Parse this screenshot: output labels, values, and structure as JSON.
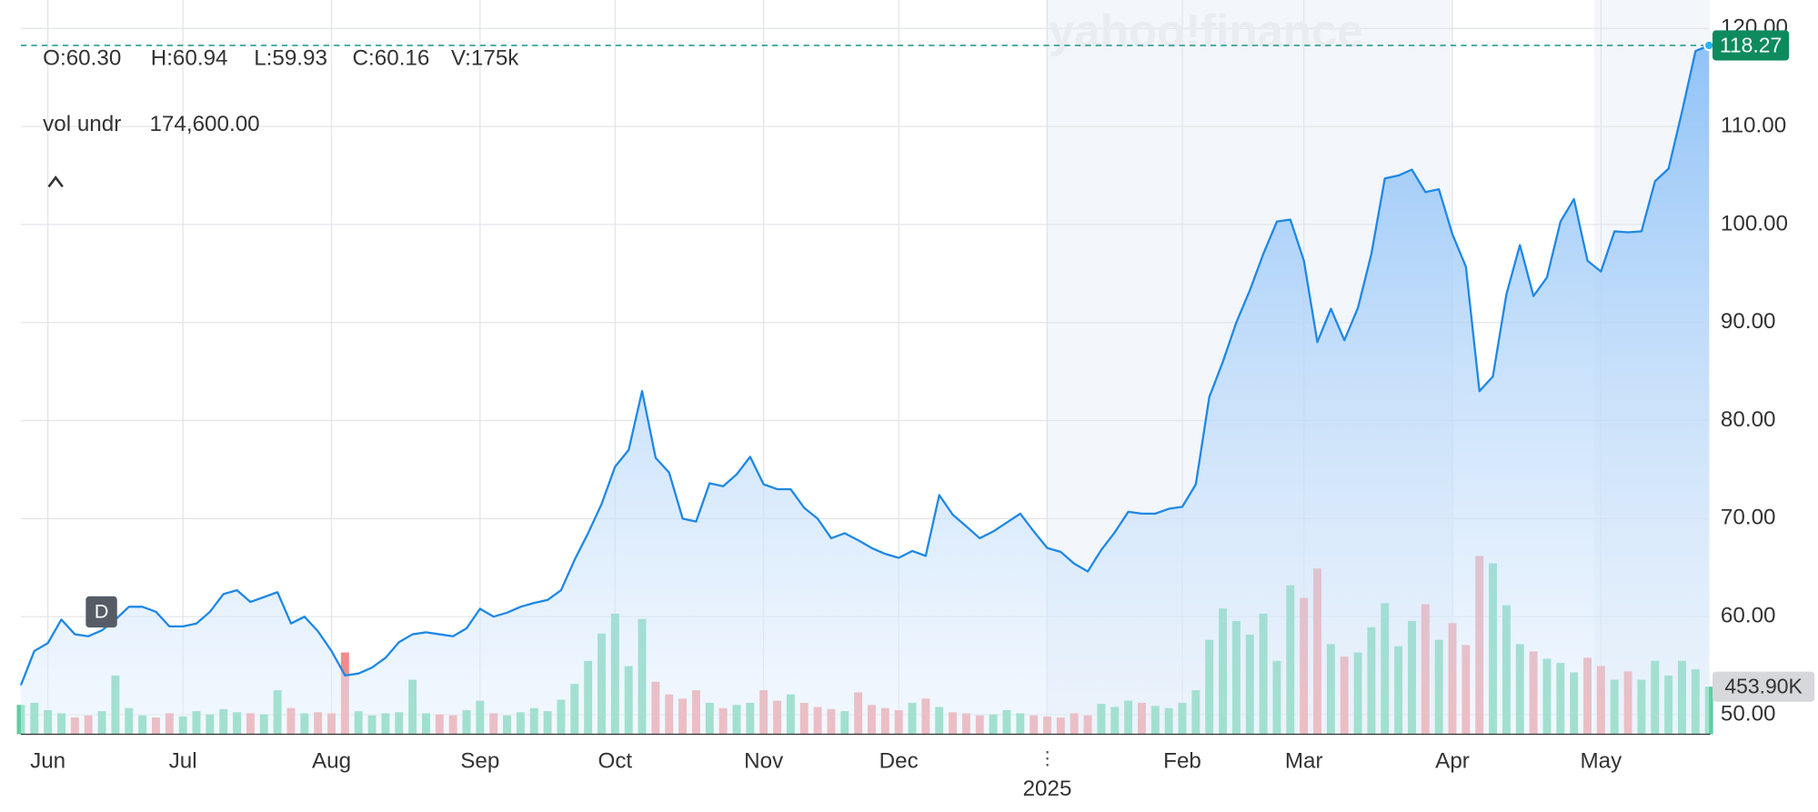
{
  "chart_data": {
    "type": "area",
    "watermark": "yahoo!finance",
    "ohlcv": [
      "O:60.30",
      "H:60.94",
      "L:59.93",
      "C:60.16",
      "V:175k"
    ],
    "volume_indicator": {
      "name": "vol undr",
      "value": "174,600.00"
    },
    "interval": "D",
    "color": "#1e88e5",
    "categories": [
      null,
      null,
      "Jun",
      null,
      null,
      null,
      null,
      null,
      null,
      null,
      null,
      null,
      "Jul",
      null,
      null,
      null,
      null,
      null,
      null,
      null,
      null,
      null,
      null,
      "Aug",
      null,
      null,
      null,
      null,
      null,
      null,
      null,
      null,
      null,
      null,
      "Sep",
      null,
      null,
      null,
      null,
      null,
      null,
      null,
      null,
      null,
      "Oct",
      null,
      null,
      null,
      null,
      null,
      null,
      null,
      null,
      null,
      null,
      "Nov",
      null,
      null,
      null,
      null,
      null,
      null,
      null,
      null,
      null,
      "Dec",
      null,
      null,
      null,
      null,
      null,
      null,
      null,
      null,
      null,
      null,
      "2025",
      null,
      null,
      null,
      null,
      null,
      null,
      null,
      null,
      null,
      "Feb",
      null,
      null,
      null,
      null,
      null,
      null,
      null,
      null,
      "Mar",
      null,
      null,
      null,
      null,
      null,
      null,
      null,
      null,
      null,
      null,
      "Apr",
      null,
      null,
      null,
      null,
      null,
      null,
      null,
      null,
      null,
      null,
      "May",
      null,
      null,
      null,
      null,
      null,
      null,
      null,
      null
    ],
    "values": [
      53,
      56.5,
      57.3,
      59.7,
      58.2,
      58,
      58.6,
      59.7,
      61,
      61,
      60.5,
      59,
      59,
      59.3,
      60.5,
      62.3,
      62.7,
      61.5,
      62,
      62.5,
      59.3,
      60,
      58.5,
      56.5,
      54,
      54.2,
      54.8,
      55.8,
      57.4,
      58.2,
      58.4,
      58.2,
      58,
      58.8,
      60.8,
      60,
      60.4,
      61,
      61.4,
      61.7,
      62.7,
      65.8,
      68.5,
      71.5,
      75.3,
      77,
      83,
      76.2,
      74.7,
      70,
      69.7,
      73.6,
      73.3,
      74.5,
      76.3,
      73.5,
      73,
      73,
      71.1,
      70,
      68,
      68.5,
      67.8,
      67,
      66.4,
      66,
      66.7,
      66.2,
      72.4,
      70.4,
      69.2,
      68,
      68.7,
      69.6,
      70.5,
      68.7,
      67,
      66.6,
      65.4,
      64.6,
      66.8,
      68.6,
      70.7,
      70.5,
      70.5,
      71,
      71.2,
      73.5,
      82.4,
      86,
      90,
      93.3,
      97,
      100.3,
      100.5,
      96.3,
      88,
      91.4,
      88.2,
      91.5,
      97,
      104.7,
      105,
      105.6,
      103.3,
      103.6,
      99,
      95.7,
      83,
      84.5,
      92.9,
      97.9,
      92.7,
      94.6,
      100.3,
      102.6,
      96.3,
      95.2,
      99.3,
      99.2,
      99.3,
      104.4,
      105.7,
      111.5,
      117.7,
      118.27
    ],
    "ylim": [
      48,
      122.9
    ],
    "yticks": [
      {
        "value": 50,
        "label": "50.00"
      },
      {
        "value": 60,
        "label": "60.00"
      },
      {
        "value": 70,
        "label": "70.00"
      },
      {
        "value": 80,
        "label": "80.00"
      },
      {
        "value": 90,
        "label": "90.00"
      },
      {
        "value": 100,
        "label": "100.00"
      },
      {
        "value": 110,
        "label": "110.00"
      },
      {
        "value": 120,
        "label": "120.00"
      }
    ],
    "grid": true,
    "last_price_color": "#0e8a5f",
    "volume": {
      "up_color": "#5ccf9e",
      "down_color": "#f28b8b",
      "lim": [
        0,
        7000
      ],
      "values": [
        280,
        300,
        230,
        200,
        160,
        180,
        220,
        560,
        250,
        180,
        160,
        200,
        170,
        220,
        190,
        240,
        210,
        200,
        190,
        420,
        250,
        200,
        210,
        200,
        780,
        220,
        180,
        200,
        210,
        520,
        200,
        190,
        180,
        230,
        320,
        200,
        180,
        210,
        250,
        220,
        330,
        480,
        700,
        960,
        1150,
        650,
        1100,
        500,
        380,
        340,
        420,
        300,
        250,
        280,
        300,
        420,
        320,
        380,
        300,
        260,
        240,
        220,
        400,
        280,
        250,
        230,
        300,
        340,
        260,
        210,
        200,
        180,
        190,
        230,
        200,
        180,
        170,
        160,
        200,
        180,
        290,
        260,
        320,
        300,
        270,
        250,
        300,
        420,
        900,
        1200,
        1080,
        950,
        1150,
        700,
        1420,
        1300,
        1580,
        860,
        740,
        780,
        1020,
        1250,
        840,
        1080,
        1240,
        900,
        1060,
        850,
        1700,
        1630,
        1230,
        860,
        790,
        720,
        680,
        590,
        730,
        650,
        520,
        600,
        520,
        700,
        560,
        700,
        620,
        453.9
      ],
      "last_label": "453.90K"
    }
  }
}
